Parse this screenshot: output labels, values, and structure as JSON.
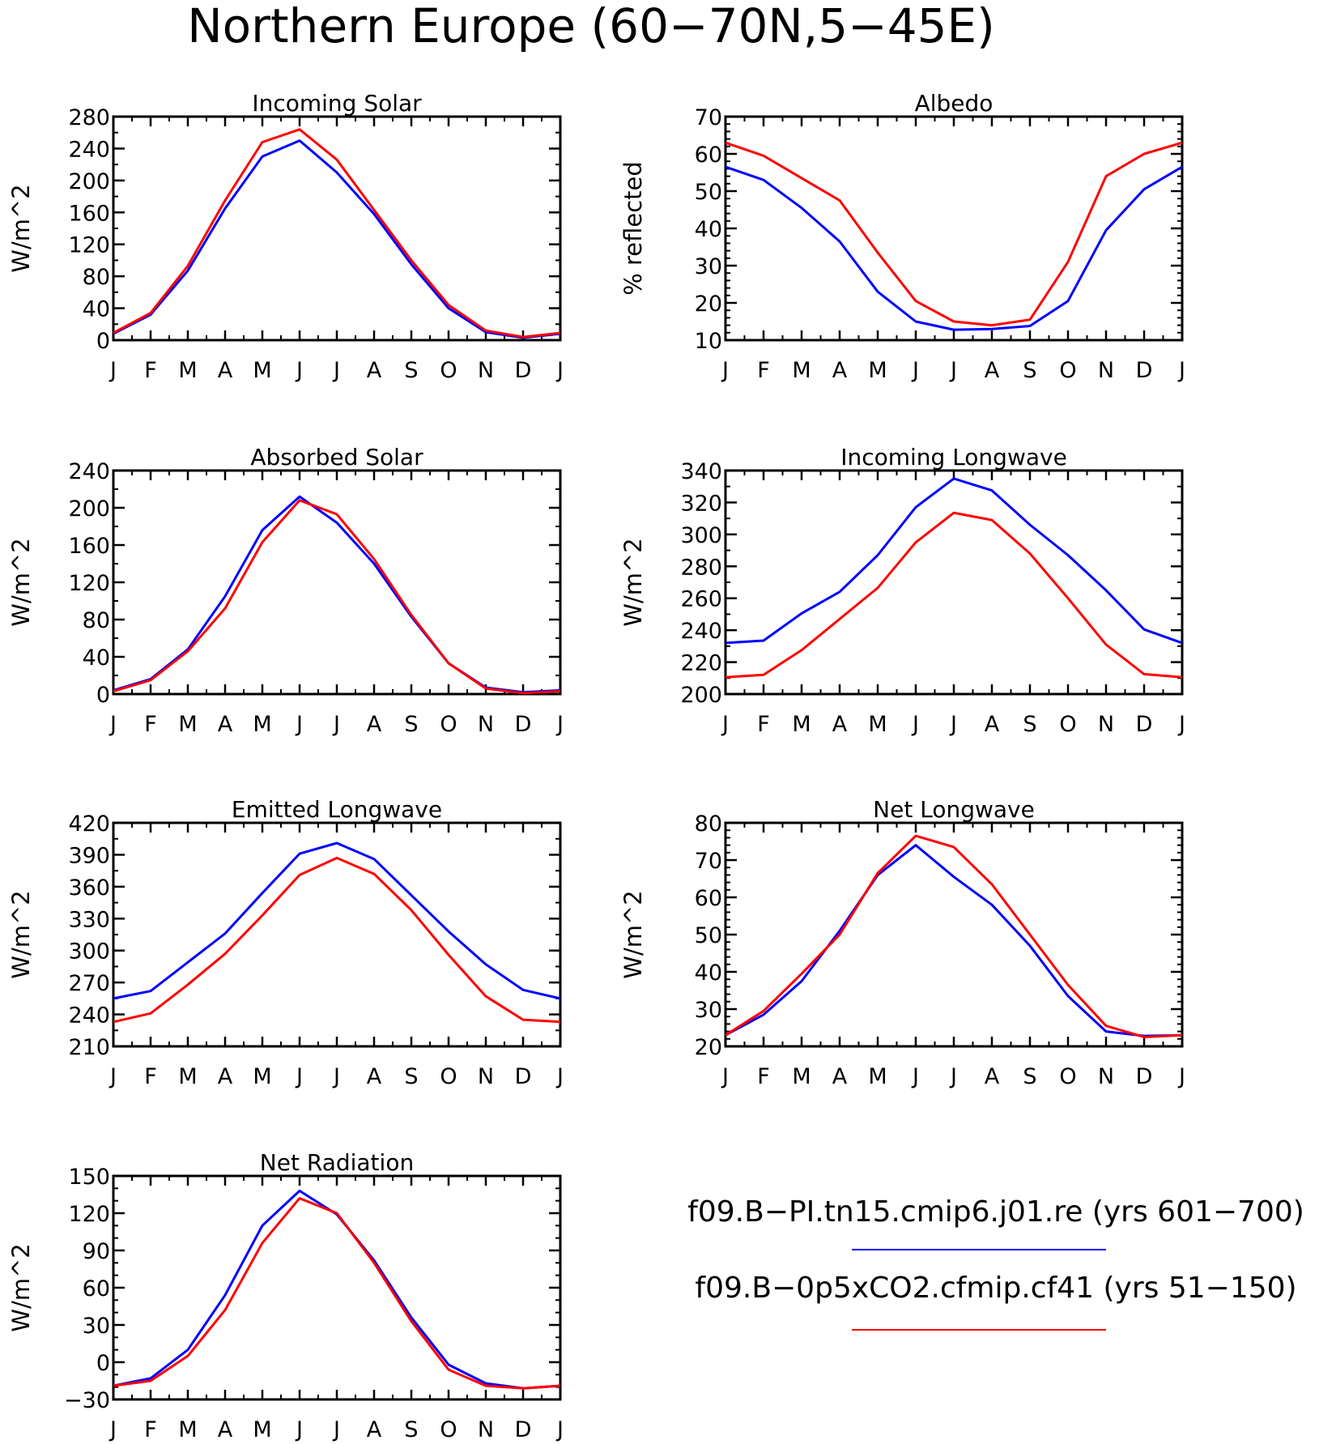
{
  "figure": {
    "title": "Northern Europe (60−70N,5−45E)",
    "legend": {
      "placement": "bottom-right",
      "entries": [
        {
          "label": "f09.B−PI.tn15.cmip6.j01.re (yrs 601−700)",
          "color": "#0000ff"
        },
        {
          "label": "f09.B−0p5xCO2.cfmip.cf41 (yrs 51−150)",
          "color": "#ff0000"
        }
      ]
    }
  },
  "chart_data": [
    {
      "type": "line",
      "title": "Incoming Solar",
      "ylabel": "W/m^2",
      "x": [
        "J",
        "F",
        "M",
        "A",
        "M",
        "J",
        "J",
        "A",
        "S",
        "O",
        "N",
        "D",
        "J"
      ],
      "ylim": [
        0,
        280
      ],
      "yticks": [
        0,
        40,
        80,
        120,
        160,
        200,
        240,
        280
      ],
      "yminor": 20,
      "series": [
        {
          "color": "#0000ff",
          "values": [
            8,
            32,
            87,
            165,
            230,
            250,
            210,
            158,
            95,
            40,
            10,
            3,
            8
          ]
        },
        {
          "color": "#ff0000",
          "values": [
            9,
            34,
            93,
            175,
            248,
            264,
            226,
            163,
            100,
            44,
            12,
            4,
            9
          ]
        }
      ]
    },
    {
      "type": "line",
      "title": "Albedo",
      "ylabel": "% reflected",
      "x": [
        "J",
        "F",
        "M",
        "A",
        "M",
        "J",
        "J",
        "A",
        "S",
        "O",
        "N",
        "D",
        "J"
      ],
      "ylim": [
        10,
        70
      ],
      "yticks": [
        10,
        20,
        30,
        40,
        50,
        60,
        70
      ],
      "yminor": 2,
      "series": [
        {
          "color": "#0000ff",
          "values": [
            56.5,
            53,
            45.5,
            36.5,
            23,
            15,
            12.8,
            13,
            13.8,
            20.5,
            39.5,
            50.5,
            56.5
          ]
        },
        {
          "color": "#ff0000",
          "values": [
            63,
            59.5,
            53.5,
            47.5,
            33.5,
            20.5,
            15,
            14,
            15.5,
            31,
            54,
            60,
            63
          ]
        }
      ]
    },
    {
      "type": "line",
      "title": "Absorbed Solar",
      "ylabel": "W/m^2",
      "x": [
        "J",
        "F",
        "M",
        "A",
        "M",
        "J",
        "J",
        "A",
        "S",
        "O",
        "N",
        "D",
        "J"
      ],
      "ylim": [
        0,
        240
      ],
      "yticks": [
        0,
        40,
        80,
        120,
        160,
        200,
        240
      ],
      "yminor": 20,
      "series": [
        {
          "color": "#0000ff",
          "values": [
            4,
            16,
            48,
            105,
            176,
            212,
            184,
            140,
            83,
            33,
            7,
            2,
            4
          ]
        },
        {
          "color": "#ff0000",
          "values": [
            3,
            15,
            46,
            92,
            163,
            208,
            193,
            145,
            85,
            33,
            6,
            1,
            3
          ]
        }
      ]
    },
    {
      "type": "line",
      "title": "Incoming Longwave",
      "ylabel": "W/m^2",
      "x": [
        "J",
        "F",
        "M",
        "A",
        "M",
        "J",
        "J",
        "A",
        "S",
        "O",
        "N",
        "D",
        "J"
      ],
      "ylim": [
        200,
        340
      ],
      "yticks": [
        200,
        220,
        240,
        260,
        280,
        300,
        320,
        340
      ],
      "yminor": 10,
      "series": [
        {
          "color": "#0000ff",
          "values": [
            232,
            233.5,
            250.5,
            264,
            287,
            317,
            335,
            327.5,
            306,
            287,
            265,
            240.5,
            232
          ]
        },
        {
          "color": "#ff0000",
          "values": [
            210.5,
            212,
            227.5,
            247,
            266.5,
            295,
            313.5,
            309,
            288,
            260,
            231,
            212.5,
            210.5
          ]
        }
      ]
    },
    {
      "type": "line",
      "title": "Emitted Longwave",
      "ylabel": "W/m^2",
      "x": [
        "J",
        "F",
        "M",
        "A",
        "M",
        "J",
        "J",
        "A",
        "S",
        "O",
        "N",
        "D",
        "J"
      ],
      "ylim": [
        210,
        420
      ],
      "yticks": [
        210,
        240,
        270,
        300,
        330,
        360,
        390,
        420
      ],
      "yminor": 15,
      "series": [
        {
          "color": "#0000ff",
          "values": [
            255,
            262,
            289,
            316,
            354,
            391,
            401,
            386,
            352,
            318,
            287,
            263,
            255
          ]
        },
        {
          "color": "#ff0000",
          "values": [
            233,
            241,
            268,
            297,
            333,
            371,
            387,
            372,
            338,
            296,
            257,
            235,
            233
          ]
        }
      ]
    },
    {
      "type": "line",
      "title": "Net Longwave",
      "ylabel": "W/m^2",
      "x": [
        "J",
        "F",
        "M",
        "A",
        "M",
        "J",
        "J",
        "A",
        "S",
        "O",
        "N",
        "D",
        "J"
      ],
      "ylim": [
        20,
        80
      ],
      "yticks": [
        20,
        30,
        40,
        50,
        60,
        70,
        80
      ],
      "yminor": 2,
      "series": [
        {
          "color": "#0000ff",
          "values": [
            23,
            28.5,
            37.5,
            51,
            66,
            74,
            65.5,
            58,
            47,
            33.5,
            24,
            22.8,
            23
          ]
        },
        {
          "color": "#ff0000",
          "values": [
            23,
            29.5,
            39.5,
            50,
            66.5,
            76.5,
            73.5,
            63.5,
            50,
            36.5,
            25.5,
            22.5,
            23
          ]
        }
      ]
    },
    {
      "type": "line",
      "title": "Net Radiation",
      "ylabel": "W/m^2",
      "x": [
        "J",
        "F",
        "M",
        "A",
        "M",
        "J",
        "J",
        "A",
        "S",
        "O",
        "N",
        "D",
        "J"
      ],
      "ylim": [
        -30,
        150
      ],
      "yticks": [
        -30,
        0,
        30,
        60,
        90,
        120,
        150
      ],
      "yminor": 10,
      "series": [
        {
          "color": "#0000ff",
          "values": [
            -19,
            -13,
            10,
            54,
            110,
            138,
            119,
            82,
            36,
            -2,
            -17,
            -21,
            -19
          ]
        },
        {
          "color": "#ff0000",
          "values": [
            -19,
            -15,
            5,
            42,
            96,
            132,
            120,
            80,
            33,
            -6,
            -19,
            -21,
            -19
          ]
        }
      ]
    }
  ]
}
